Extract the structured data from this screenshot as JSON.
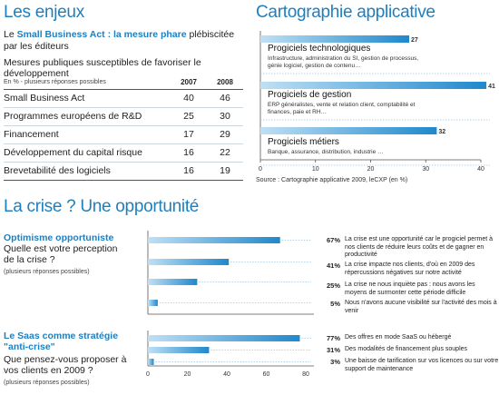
{
  "headings": {
    "enjeux": "Les enjeux",
    "cartographie": "Cartographie applicative",
    "crise": "La crise ? Une opportunité"
  },
  "enjeux": {
    "intro_prefix": "Le ",
    "intro_highlight": "Small Business Act : la mesure phare",
    "intro_suffix": " plébiscitée par les éditeurs",
    "subtitle": "Mesures publiques susceptibles de favoriser le développement",
    "table_note": "En % - plusieurs réponses possibles",
    "years": [
      "2007",
      "2008"
    ]
  },
  "cartographie": {
    "source": "Source : Cartographie applicative 2009, leCXP (en %)"
  },
  "crise": {
    "q1": {
      "title": "Optimisme opportuniste",
      "question": "Quelle est votre perception de la crise ?",
      "note": "(plusieurs réponses possibles)"
    },
    "q2": {
      "title": "Le Saas comme stratégie \"anti-crise\"",
      "question": "Que pensez-vous proposer à vos clients en 2009 ?",
      "note": "(plusieurs réponses possibles)"
    }
  },
  "chart_data": [
    {
      "type": "table",
      "columns": [
        "En % - plusieurs réponses possibles",
        "2007",
        "2008"
      ],
      "rows": [
        {
          "label": "Small Business Act",
          "v2007": 40,
          "v2008": 46
        },
        {
          "label": "Programmes européens de R&D",
          "v2007": 25,
          "v2008": 30
        },
        {
          "label": "Financement",
          "v2007": 17,
          "v2008": 29
        },
        {
          "label": "Développement du capital risque",
          "v2007": 16,
          "v2008": 22
        },
        {
          "label": "Brevetabilité des logiciels",
          "v2007": 16,
          "v2008": 19
        }
      ]
    },
    {
      "type": "bar",
      "orientation": "horizontal",
      "title": "Cartographie applicative",
      "xlim": [
        0,
        40
      ],
      "ticks": [
        0,
        10,
        20,
        30,
        40
      ],
      "categories": [
        {
          "name": "Progiciels technologiques",
          "detail": "Infrastructure, administration du SI, gestion de processus, génie logiciel, gestion de contenu…",
          "value": 27
        },
        {
          "name": "Progiciels de gestion",
          "detail": "ERP généralistes, vente et relation client, comptabilité et finances, paie et RH…",
          "value": 41
        },
        {
          "name": "Progiciels métiers",
          "detail": "Banque, assurance, distribution, industrie …",
          "value": 32
        }
      ]
    },
    {
      "type": "bar",
      "orientation": "horizontal",
      "title": "Optimisme opportuniste",
      "xlim": [
        0,
        80
      ],
      "ticks": [
        0,
        20,
        40,
        60,
        80
      ],
      "items": [
        {
          "value": 67,
          "label": "67%",
          "text": "La crise est une opportunité car le progiciel permet à nos clients de réduire leurs coûts et de gagner en productivité"
        },
        {
          "value": 41,
          "label": "41%",
          "text": "La crise impacte nos clients, d'où en 2009 des répercussions négatives sur notre activité"
        },
        {
          "value": 25,
          "label": "25%",
          "text": "La crise ne nous inquiète pas : nous avons les moyens de surmonter cette période difficile"
        },
        {
          "value": 5,
          "label": "5%",
          "text": "Nous n'avons aucune visibilité sur l'activité des mois à venir"
        }
      ]
    },
    {
      "type": "bar",
      "orientation": "horizontal",
      "title": "Le Saas comme stratégie \"anti-crise\"",
      "xlim": [
        0,
        80
      ],
      "ticks": [
        0,
        20,
        40,
        60,
        80
      ],
      "items": [
        {
          "value": 77,
          "label": "77%",
          "text": "Des offres en mode SaaS ou hébergé"
        },
        {
          "value": 31,
          "label": "31%",
          "text": "Des modalités de financement plus souples"
        },
        {
          "value": 3,
          "label": "3%",
          "text": "Une baisse de tarification sur vos licences ou sur votre support de maintenance"
        }
      ]
    }
  ]
}
